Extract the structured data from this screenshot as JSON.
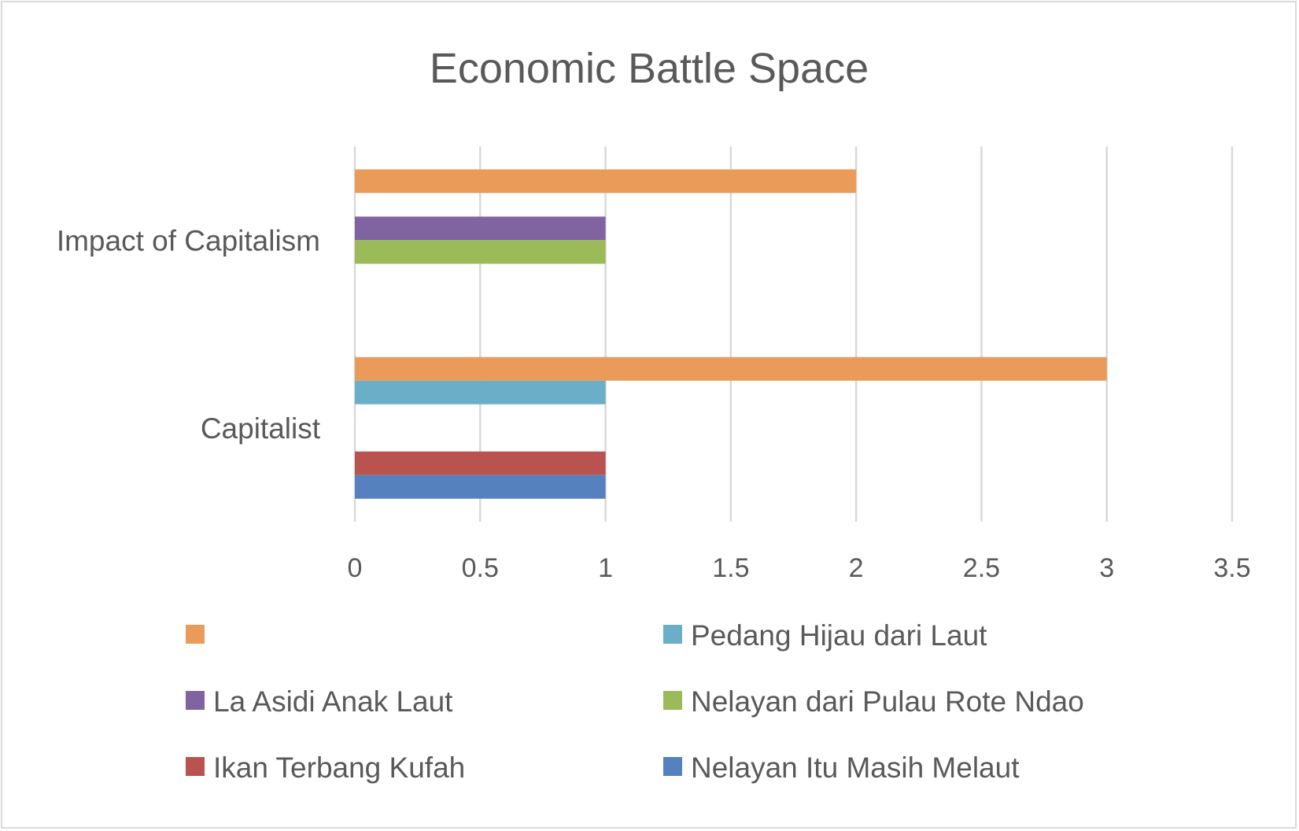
{
  "chart_data": {
    "type": "bar",
    "orientation": "horizontal",
    "title": "Economic Battle Space",
    "xlabel": "",
    "ylabel": "",
    "xlim": [
      0,
      3.5
    ],
    "x_ticks": [
      "0",
      "0.5",
      "1",
      "1.5",
      "2",
      "2.5",
      "3",
      "3.5"
    ],
    "grid": true,
    "legend_position": "bottom",
    "categories": [
      "Impact of Capitalism",
      "Capitalist"
    ],
    "series": [
      {
        "name": "",
        "color": "#eb9b59",
        "values": [
          2,
          3
        ]
      },
      {
        "name": "Pedang Hijau dari Laut",
        "color": "#6aafc7",
        "values": [
          0,
          1
        ]
      },
      {
        "name": "La Asidi Anak Laut",
        "color": "#8064a2",
        "values": [
          1,
          0
        ]
      },
      {
        "name": "Nelayan dari Pulau Rote Ndao",
        "color": "#9bbb59",
        "values": [
          1,
          0
        ]
      },
      {
        "name": "Ikan Terbang Kufah",
        "color": "#b9534f",
        "values": [
          0,
          1
        ]
      },
      {
        "name": "Nelayan Itu Masih Melaut",
        "color": "#5581bf",
        "values": [
          0,
          1
        ]
      }
    ]
  }
}
